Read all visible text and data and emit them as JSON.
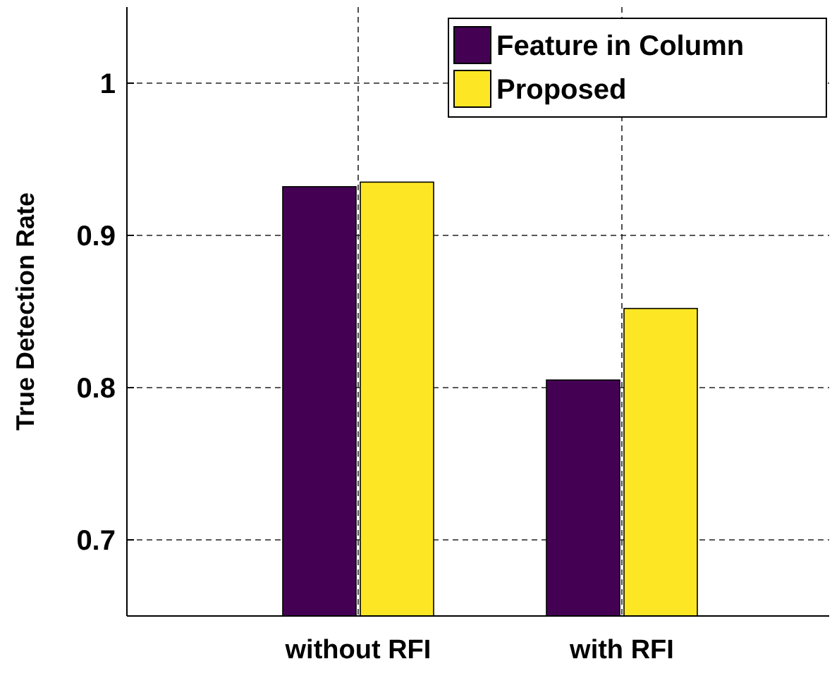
{
  "chart_data": {
    "type": "bar",
    "ylabel": "True Detection Rate",
    "categories": [
      "without RFI",
      "with RFI"
    ],
    "series": [
      {
        "name": "Feature in Column",
        "color": "#440154",
        "values": [
          0.932,
          0.805
        ]
      },
      {
        "name": "Proposed",
        "color": "#fde725",
        "values": [
          0.935,
          0.852
        ]
      }
    ],
    "ylim": [
      0.65,
      1.05
    ],
    "yticks": [
      0.7,
      0.8,
      0.9,
      1
    ],
    "grid": true,
    "legend": "top right"
  }
}
